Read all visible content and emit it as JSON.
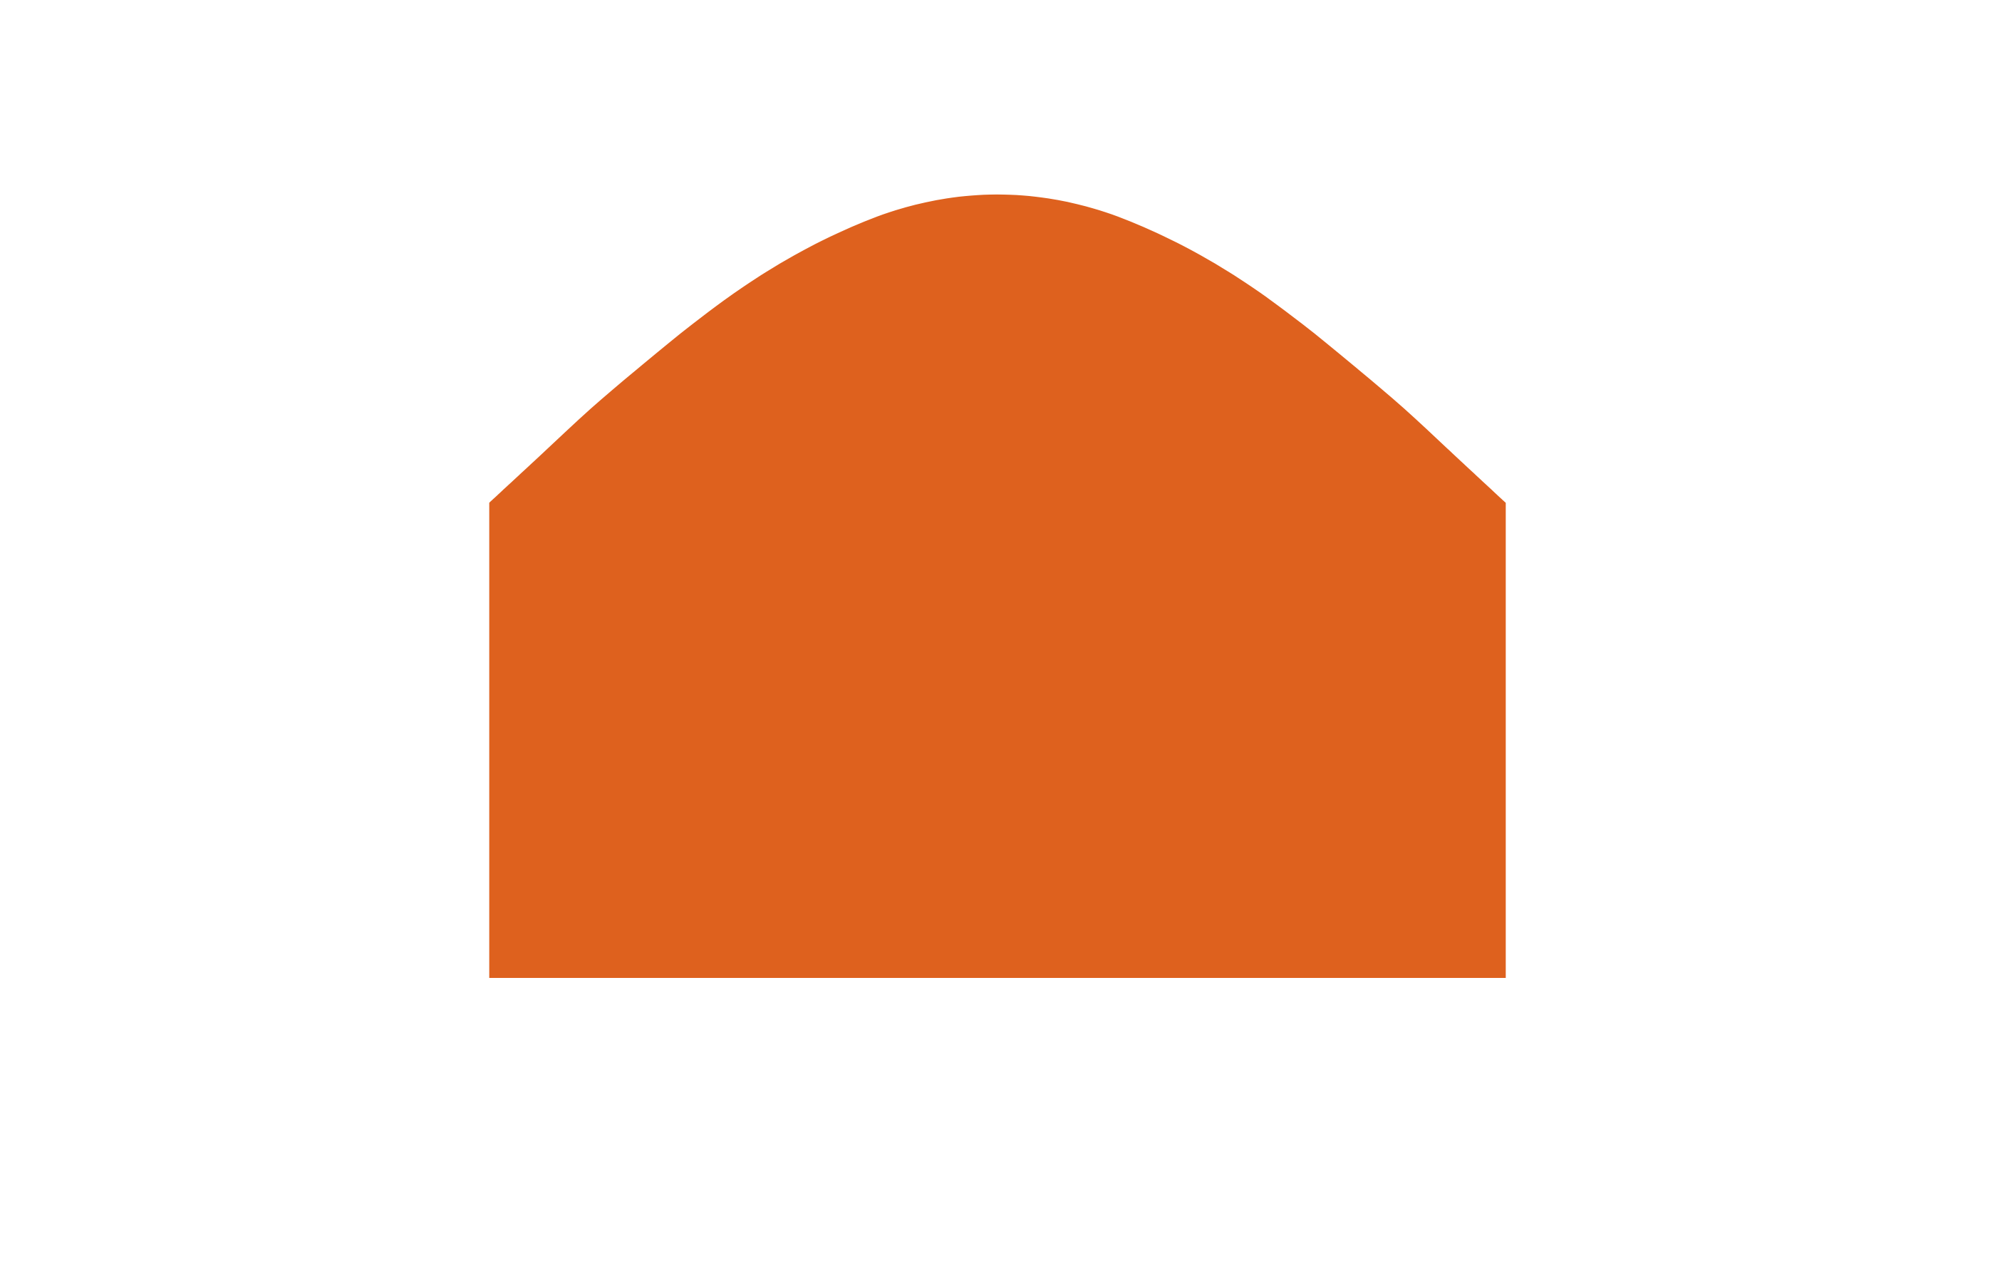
{
  "chart_data": {
    "type": "area",
    "title": "",
    "xlabel": "",
    "ylabel": "",
    "grid": false,
    "legend": "none",
    "xlim": [
      -1.5,
      1.5
    ],
    "ylim": [
      0,
      0.42
    ],
    "fill_color": "#de611e",
    "series": [
      {
        "x": [
          -1.0,
          -0.9,
          -0.8,
          -0.7,
          -0.6,
          -0.5,
          -0.4,
          -0.3,
          -0.2,
          -0.1,
          0.0,
          0.1,
          0.2,
          0.3,
          0.4,
          0.5,
          0.6,
          0.7,
          0.8,
          0.9,
          1.0
        ],
        "values": [
          0.242,
          0.266,
          0.29,
          0.312,
          0.333,
          0.352,
          0.368,
          0.381,
          0.391,
          0.397,
          0.399,
          0.397,
          0.391,
          0.381,
          0.368,
          0.352,
          0.333,
          0.312,
          0.29,
          0.266,
          0.242
        ]
      }
    ]
  }
}
